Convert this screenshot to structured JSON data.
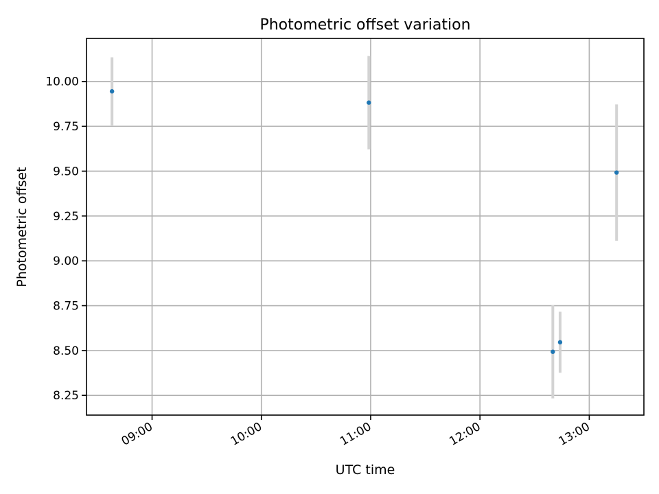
{
  "chart_data": {
    "type": "scatter",
    "title": "Photometric offset variation",
    "xlabel": "UTC time",
    "ylabel": "Photometric offset",
    "xlim": [
      "08:24",
      "13:30"
    ],
    "ylim": [
      8.14,
      10.24
    ],
    "xticks": [
      "09:00",
      "10:00",
      "11:00",
      "12:00",
      "13:00"
    ],
    "yticks": [
      8.25,
      8.5,
      8.75,
      9.0,
      9.25,
      9.5,
      9.75,
      10.0
    ],
    "ytick_labels": [
      "8.25",
      "8.50",
      "8.75",
      "9.00",
      "9.25",
      "9.50",
      "9.75",
      "10.00"
    ],
    "grid": true,
    "series": [
      {
        "points": [
          {
            "x": "08:38",
            "y": 9.945,
            "yerr": 0.19
          },
          {
            "x": "10:59",
            "y": 9.882,
            "yerr": 0.26
          },
          {
            "x": "12:40",
            "y": 8.493,
            "yerr": 0.26
          },
          {
            "x": "12:44",
            "y": 8.546,
            "yerr": 0.17
          },
          {
            "x": "13:15",
            "y": 9.492,
            "yerr": 0.38
          }
        ]
      }
    ],
    "colors": {
      "marker": "#1f77b4",
      "errorbar": "#d3d3d3"
    }
  }
}
